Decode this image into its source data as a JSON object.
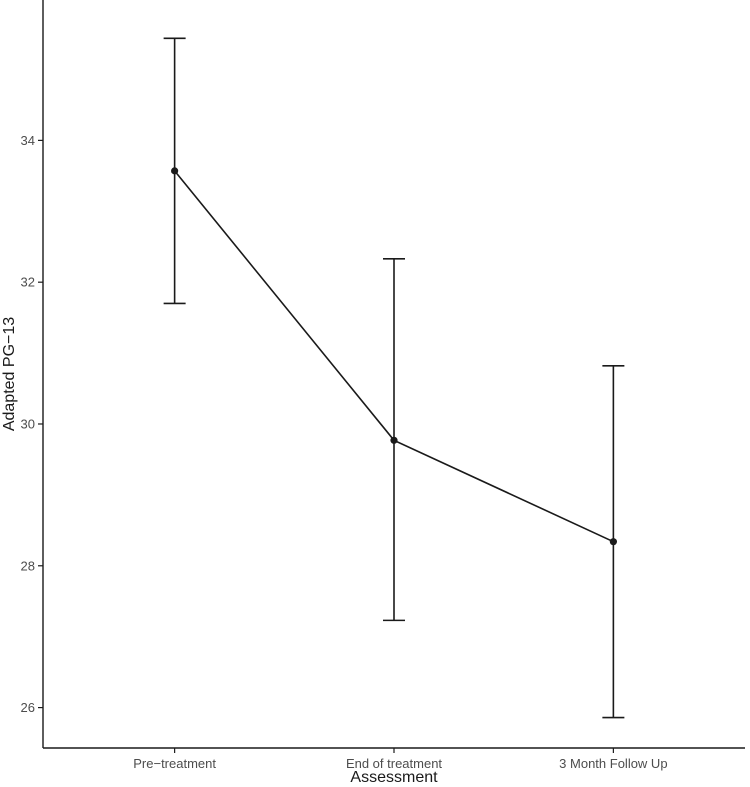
{
  "chart_data": {
    "type": "line",
    "categories": [
      "Pre−treatment",
      "End of treatment",
      "3 Month Follow Up"
    ],
    "series": [
      {
        "values": [
          33.57,
          29.77,
          28.34
        ],
        "error_low": [
          31.7,
          27.23,
          25.86
        ],
        "error_high": [
          35.44,
          32.33,
          30.82
        ]
      }
    ],
    "xlabel": "Assessment",
    "ylabel": "Adapted PG−13",
    "yticks": [
      26,
      28,
      30,
      32,
      34
    ],
    "ylim": [
      25.43,
      35.98
    ],
    "grid": false,
    "colors": {
      "line": "#1a1a1a",
      "axis": "#1a1a1a",
      "tick_label": "#4d4d4d"
    }
  }
}
